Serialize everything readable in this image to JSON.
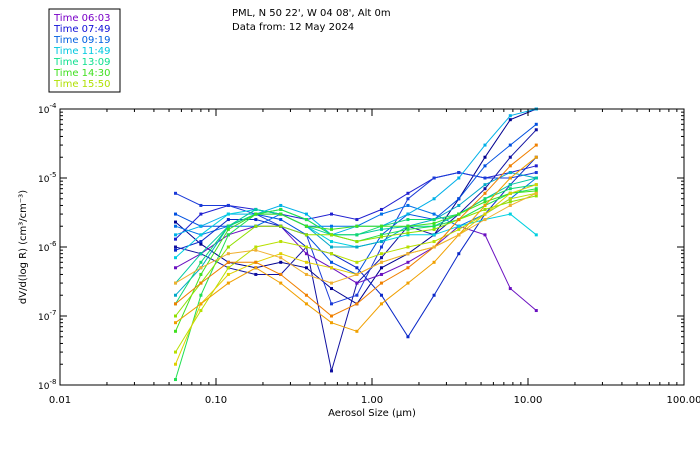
{
  "chart_data": {
    "type": "line",
    "title": "PML, N 50 22', W 04 08', Alt 0m",
    "subtitle": "Data from: 12 May 2024",
    "xlabel": "Aerosol Size (µm)",
    "ylabel": "dV/d(log R) (cm³/cm⁻³)",
    "xscale": "log",
    "yscale": "log",
    "xlim": [
      0.01,
      100
    ],
    "ylim": [
      1e-08,
      0.0001
    ],
    "x_ticks": [
      {
        "value": 0.01,
        "label": "0.01"
      },
      {
        "value": 0.1,
        "label": "0.10"
      },
      {
        "value": 1,
        "label": "1.00"
      },
      {
        "value": 10,
        "label": "10.00"
      },
      {
        "value": 100,
        "label": "100.00"
      }
    ],
    "y_ticks": [
      {
        "value": 1e-08,
        "mant": "10",
        "exp": "-8"
      },
      {
        "value": 1e-07,
        "mant": "10",
        "exp": "-7"
      },
      {
        "value": 1e-06,
        "mant": "10",
        "exp": "-6"
      },
      {
        "value": 1e-05,
        "mant": "10",
        "exp": "-5"
      },
      {
        "value": 0.0001,
        "mant": "10",
        "exp": "-4"
      }
    ],
    "legend_position": "top-left",
    "legend": [
      {
        "label": "Time 06:03",
        "color": "#7a00c8"
      },
      {
        "label": "Time 07:49",
        "color": "#1010d8"
      },
      {
        "label": "Time 09:19",
        "color": "#0060e0"
      },
      {
        "label": "Time 11:49",
        "color": "#00c8e0"
      },
      {
        "label": "Time 13:09",
        "color": "#10e090"
      },
      {
        "label": "Time 14:30",
        "color": "#40e020"
      },
      {
        "label": "Time 15:50",
        "color": "#b0e000"
      }
    ],
    "x": [
      0.055,
      0.08,
      0.12,
      0.18,
      0.26,
      0.38,
      0.55,
      0.8,
      1.15,
      1.7,
      2.5,
      3.6,
      5.3,
      7.7,
      11.3
    ],
    "series": [
      {
        "name": "navy-1",
        "color": "#000090",
        "values": [
          2.3e-06,
          1.1e-06,
          6e-07,
          5e-07,
          6e-07,
          5e-07,
          2.5e-07,
          1.5e-07,
          5e-07,
          8e-07,
          1.5e-06,
          5e-06,
          2e-05,
          7e-05,
          0.0001
        ]
      },
      {
        "name": "navy-2",
        "color": "#1010a0",
        "values": [
          1e-06,
          8e-07,
          5e-07,
          4e-07,
          4e-07,
          1e-06,
          1.6e-08,
          3e-07,
          7e-07,
          2e-06,
          1.5e-06,
          3e-06,
          7e-06,
          2e-05,
          5e-05
        ]
      },
      {
        "name": "blue-1",
        "color": "#2020d0",
        "values": [
          1.3e-06,
          3e-06,
          4e-06,
          3.5e-06,
          3e-06,
          2.5e-06,
          3e-06,
          2.5e-06,
          3.5e-06,
          6e-06,
          1e-05,
          1.2e-05,
          1e-05,
          1.2e-05,
          1.5e-05
        ]
      },
      {
        "name": "blue-2",
        "color": "#1a3ad8",
        "values": [
          6e-06,
          4e-06,
          4e-06,
          3e-06,
          2e-06,
          1.5e-06,
          1.5e-07,
          2e-07,
          1e-06,
          5e-06,
          1e-05,
          1.2e-05,
          1e-05,
          1e-05,
          1.2e-05
        ]
      },
      {
        "name": "purple-1",
        "color": "#6a10c0",
        "values": [
          5e-07,
          8e-07,
          1.5e-06,
          2e-06,
          2e-06,
          8e-07,
          5e-07,
          3e-07,
          4e-07,
          6e-07,
          1e-06,
          2e-06,
          1.5e-06,
          2.5e-07,
          1.2e-07
        ]
      },
      {
        "name": "blue-3",
        "color": "#0050e0",
        "values": [
          3e-06,
          2e-06,
          2e-06,
          3e-06,
          2.5e-06,
          1.5e-06,
          6e-07,
          4e-07,
          1.5e-06,
          3e-06,
          2.5e-06,
          5e-06,
          1.5e-05,
          3e-05,
          6e-05
        ]
      },
      {
        "name": "blue-4",
        "color": "#0070e8",
        "values": [
          2e-06,
          1.5e-06,
          2e-06,
          2e-06,
          3e-06,
          2e-06,
          2e-06,
          2e-06,
          3e-06,
          4e-06,
          3e-06,
          2e-06,
          3e-06,
          5e-06,
          1e-05
        ]
      },
      {
        "name": "blue-5",
        "color": "#0a28c8",
        "values": [
          9e-07,
          1.2e-06,
          2.5e-06,
          2.5e-06,
          2e-06,
          1e-06,
          8e-07,
          5e-07,
          2e-07,
          5e-08,
          2e-07,
          8e-07,
          3e-06,
          8e-06,
          2e-05
        ]
      },
      {
        "name": "cyan-1",
        "color": "#00b0e8",
        "values": [
          1.5e-06,
          2e-06,
          3e-06,
          3e-06,
          4e-06,
          3e-06,
          1.5e-06,
          2e-06,
          2e-06,
          3e-06,
          5e-06,
          1e-05,
          3e-05,
          8e-05,
          0.0001
        ]
      },
      {
        "name": "cyan-2",
        "color": "#00d0e0",
        "values": [
          7e-07,
          1.5e-06,
          3e-06,
          3.5e-06,
          3e-06,
          2e-06,
          1.2e-06,
          1e-06,
          1.2e-06,
          1.5e-06,
          1.5e-06,
          2e-06,
          2.5e-06,
          3e-06,
          1.5e-06
        ]
      },
      {
        "name": "cyan-3",
        "color": "#00a8c8",
        "values": [
          2e-07,
          5e-07,
          2e-06,
          3e-06,
          3e-06,
          2e-06,
          1e-06,
          1e-06,
          1.2e-06,
          2e-06,
          2.5e-06,
          4e-06,
          8e-06,
          1.2e-05,
          1e-05
        ]
      },
      {
        "name": "teal-1",
        "color": "#00c8a0",
        "values": [
          3e-07,
          8e-07,
          2e-06,
          3.5e-06,
          3e-06,
          2e-06,
          1.5e-06,
          1.5e-06,
          1.8e-06,
          2e-06,
          2e-06,
          3e-06,
          5e-06,
          8e-06,
          1e-05
        ]
      },
      {
        "name": "green-1",
        "color": "#10d870",
        "values": [
          1.5e-07,
          6e-07,
          2e-06,
          3e-06,
          3.5e-06,
          2.5e-06,
          1.5e-06,
          1.5e-06,
          2e-06,
          2.5e-06,
          2.5e-06,
          3e-06,
          5e-06,
          7e-06,
          8e-06
        ]
      },
      {
        "name": "green-2",
        "color": "#20e050",
        "values": [
          1.2e-08,
          2e-07,
          1.5e-06,
          3e-06,
          3.5e-06,
          2.5e-06,
          1.5e-06,
          1.2e-06,
          1.5e-06,
          1.8e-06,
          2e-06,
          2.5e-06,
          4e-06,
          6e-06,
          7e-06
        ]
      },
      {
        "name": "green-3",
        "color": "#40e020",
        "values": [
          6e-08,
          4e-07,
          1.8e-06,
          3e-06,
          3e-06,
          2e-06,
          1.8e-06,
          2e-06,
          2e-06,
          2e-06,
          2.2e-06,
          3e-06,
          4.5e-06,
          6e-06,
          6.5e-06
        ]
      },
      {
        "name": "lime-1",
        "color": "#90e000",
        "values": [
          1e-07,
          3e-07,
          1e-06,
          2e-06,
          2e-06,
          1.5e-06,
          1.5e-06,
          1.2e-06,
          1.4e-06,
          1.6e-06,
          1.8e-06,
          2.5e-06,
          3.5e-06,
          4.5e-06,
          5.5e-06
        ]
      },
      {
        "name": "lime-2",
        "color": "#b8e000",
        "values": [
          3e-08,
          1.2e-07,
          5e-07,
          1e-06,
          1.2e-06,
          1e-06,
          8e-07,
          6e-07,
          8e-07,
          1e-06,
          1.2e-06,
          1.8e-06,
          3e-06,
          5e-06,
          6e-06
        ]
      },
      {
        "name": "yellow-1",
        "color": "#e0d000",
        "values": [
          2e-08,
          1.5e-07,
          4e-07,
          6e-07,
          8e-07,
          6e-07,
          5e-07,
          4e-07,
          6e-07,
          8e-07,
          1e-06,
          1.5e-06,
          3e-06,
          6e-06,
          8e-06
        ]
      },
      {
        "name": "orange-1",
        "color": "#f0a000",
        "values": [
          8e-08,
          1.5e-07,
          3e-07,
          5e-07,
          3e-07,
          1.5e-07,
          8e-08,
          6e-08,
          1.5e-07,
          3e-07,
          6e-07,
          1.5e-06,
          4e-06,
          1e-05,
          2e-05
        ]
      },
      {
        "name": "orange-2",
        "color": "#f08000",
        "values": [
          1.5e-07,
          3e-07,
          6e-07,
          6e-07,
          4e-07,
          2e-07,
          1e-07,
          1.5e-07,
          3e-07,
          5e-07,
          1e-06,
          2.5e-06,
          6e-06,
          1.5e-05,
          3e-05
        ]
      },
      {
        "name": "orange-3",
        "color": "#f0b030",
        "values": [
          3e-07,
          5e-07,
          8e-07,
          9e-07,
          7e-07,
          4e-07,
          3e-07,
          4e-07,
          6e-07,
          8e-07,
          1e-06,
          1.5e-06,
          2.5e-06,
          4e-06,
          6e-06
        ]
      }
    ]
  }
}
